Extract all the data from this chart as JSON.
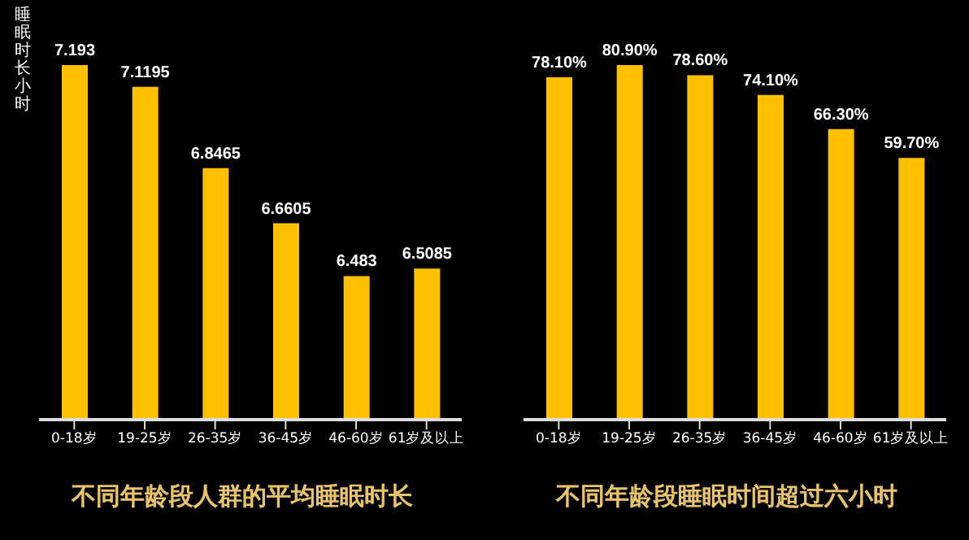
{
  "chart_data": [
    {
      "type": "bar",
      "title": "不同年龄段人群的平均睡眠时长",
      "ylabel": "睡眠时长小时",
      "categories": [
        "0-18岁",
        "19-25岁",
        "26-35岁",
        "36-45岁",
        "46-60岁",
        "61岁及以上"
      ],
      "values": [
        7.193,
        7.1195,
        6.8465,
        6.6605,
        6.483,
        6.5085
      ],
      "color": "#ffc000",
      "ylim": [
        6,
        7.193
      ],
      "data_labels": true,
      "tick_labels": "x",
      "grid": false,
      "legend": false
    },
    {
      "type": "bar",
      "title": "不同年龄段睡眠时间超过六小时",
      "categories": [
        "0-18岁",
        "19-25岁",
        "26-35岁",
        "36-45岁",
        "46-60岁",
        "61岁及以上"
      ],
      "values": [
        78.1,
        80.9,
        78.6,
        74.1,
        66.3,
        59.7
      ],
      "value_labels": [
        "78.10%",
        "80.90%",
        "78.60%",
        "74.10%",
        "66.30%",
        "59.70%"
      ],
      "color": "#ffc000",
      "ylim": [
        0,
        80.9
      ],
      "tick_labels": "x",
      "grid": false,
      "legend": false
    }
  ]
}
